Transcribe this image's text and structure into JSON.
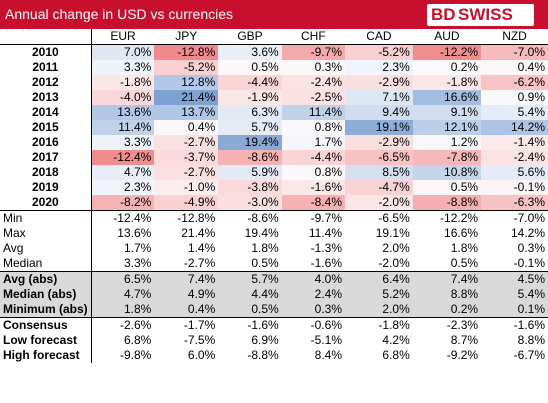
{
  "title": "Annual change in USD vs currencies",
  "logo": {
    "bd": "BD",
    "swiss": "SWISS"
  },
  "columns": [
    "EUR",
    "JPY",
    "GBP",
    "CHF",
    "CAD",
    "AUD",
    "NZD"
  ],
  "years": [
    {
      "year": "2010",
      "values": [
        "7.0%",
        "-12.8%",
        "3.6%",
        "-9.7%",
        "-5.2%",
        "-12.2%",
        "-7.0%"
      ],
      "colors": [
        "#dfe7f3",
        "#f08a8c",
        "#e9eef7",
        "#f4a9aa",
        "#f9cfd0",
        "#f08d8f",
        "#f6bcbd"
      ]
    },
    {
      "year": "2011",
      "values": [
        "3.3%",
        "-5.2%",
        "0.5%",
        "0.3%",
        "2.3%",
        "0.2%",
        "0.4%"
      ],
      "colors": [
        "#eef2f9",
        "#f9cfd0",
        "#fbf6f8",
        "#fcf8fa",
        "#f1f4fa",
        "#fcf9fb",
        "#fbf7f9"
      ]
    },
    {
      "year": "2012",
      "values": [
        "-1.8%",
        "12.8%",
        "-4.4%",
        "-2.4%",
        "-2.9%",
        "-1.8%",
        "-6.2%"
      ],
      "colors": [
        "#fbe7e8",
        "#b3c8e6",
        "#fad5d6",
        "#fbe2e3",
        "#fbdfe0",
        "#fbe7e8",
        "#f8c4c5"
      ]
    },
    {
      "year": "2013",
      "values": [
        "-4.0%",
        "21.4%",
        "-1.9%",
        "-2.5%",
        "7.1%",
        "16.6%",
        "0.9%"
      ],
      "colors": [
        "#fad8d9",
        "#7ea1d1",
        "#fbe6e7",
        "#fbe1e2",
        "#dde6f3",
        "#a3bde0",
        "#f9f8fb"
      ]
    },
    {
      "year": "2014",
      "values": [
        "13.6%",
        "13.7%",
        "6.3%",
        "11.4%",
        "9.4%",
        "9.1%",
        "5.4%"
      ],
      "colors": [
        "#b1c7e5",
        "#b0c6e5",
        "#e2e9f5",
        "#c0d1ea",
        "#d0dcef",
        "#d2ddef",
        "#e6ecf6"
      ]
    },
    {
      "year": "2015",
      "values": [
        "11.4%",
        "0.4%",
        "5.7%",
        "0.8%",
        "19.1%",
        "12.1%",
        "14.2%"
      ],
      "colors": [
        "#c0d1ea",
        "#fbf7f9",
        "#e4ebf5",
        "#faf8fb",
        "#8dacd6",
        "#bccfe8",
        "#adc4e4"
      ]
    },
    {
      "year": "2016",
      "values": [
        "3.3%",
        "-2.7%",
        "19.4%",
        "1.7%",
        "-2.9%",
        "1.2%",
        "-1.4%"
      ],
      "colors": [
        "#eef2f9",
        "#fbe0e1",
        "#8aa9d5",
        "#f5f6fb",
        "#fbdfe0",
        "#f8f8fb",
        "#fce9ea"
      ]
    },
    {
      "year": "2017",
      "values": [
        "-12.4%",
        "-3.7%",
        "-8.6%",
        "-4.4%",
        "-6.5%",
        "-7.8%",
        "-2.4%"
      ],
      "colors": [
        "#f08c8e",
        "#fadadb",
        "#f6b1b2",
        "#fad5d6",
        "#f8c2c3",
        "#f7b8b9",
        "#fbe2e3"
      ]
    },
    {
      "year": "2018",
      "values": [
        "4.7%",
        "-2.7%",
        "5.9%",
        "0.8%",
        "8.5%",
        "10.8%",
        "5.6%"
      ],
      "colors": [
        "#e8eef7",
        "#fbe0e1",
        "#e3eaf5",
        "#faf8fb",
        "#d5dff0",
        "#c5d4eb",
        "#e5ebf6"
      ]
    },
    {
      "year": "2019",
      "values": [
        "2.3%",
        "-1.0%",
        "-3.8%",
        "-1.6%",
        "-4.7%",
        "0.5%",
        "-0.1%"
      ],
      "colors": [
        "#f1f4fa",
        "#fbeced",
        "#fad9da",
        "#fbe8e9",
        "#f9d3d4",
        "#fbf6f8",
        "#fcf3f4"
      ]
    },
    {
      "year": "2020",
      "values": [
        "-8.2%",
        "-4.9%",
        "-3.0%",
        "-8.4%",
        "-2.0%",
        "-8.8%",
        "-6.3%"
      ],
      "colors": [
        "#f6b3b4",
        "#f9d1d2",
        "#fbdedf",
        "#f6b2b3",
        "#fbe5e6",
        "#f6afb0",
        "#f8c3c4"
      ]
    }
  ],
  "stats": [
    {
      "label": "Min",
      "values": [
        "-12.4%",
        "-12.8%",
        "-8.6%",
        "-9.7%",
        "-6.5%",
        "-12.2%",
        "-7.0%"
      ]
    },
    {
      "label": "Max",
      "values": [
        "13.6%",
        "21.4%",
        "19.4%",
        "11.4%",
        "19.1%",
        "16.6%",
        "14.2%"
      ]
    },
    {
      "label": "Avg",
      "values": [
        "1.7%",
        "1.4%",
        "1.8%",
        "-1.3%",
        "2.0%",
        "1.8%",
        "0.3%"
      ]
    },
    {
      "label": "Median",
      "values": [
        "3.3%",
        "-2.7%",
        "0.5%",
        "-1.6%",
        "-2.0%",
        "0.5%",
        "-0.1%"
      ]
    }
  ],
  "abs": [
    {
      "label": "Avg (abs)",
      "values": [
        "6.5%",
        "7.4%",
        "5.7%",
        "4.0%",
        "6.4%",
        "7.4%",
        "4.5%"
      ]
    },
    {
      "label": "Median (abs)",
      "values": [
        "4.7%",
        "4.9%",
        "4.4%",
        "2.4%",
        "5.2%",
        "8.8%",
        "5.4%"
      ]
    },
    {
      "label": "Minimum (abs)",
      "values": [
        "1.8%",
        "0.4%",
        "0.5%",
        "0.3%",
        "2.0%",
        "0.2%",
        "0.1%"
      ]
    }
  ],
  "forecasts": [
    {
      "label": "Consensus",
      "values": [
        "-2.6%",
        "-1.7%",
        "-1.6%",
        "-0.6%",
        "-1.8%",
        "-2.3%",
        "-1.6%"
      ]
    },
    {
      "label": "Low forecast",
      "values": [
        "6.8%",
        "-7.5%",
        "6.9%",
        "-5.1%",
        "4.2%",
        "8.7%",
        "8.8%"
      ]
    },
    {
      "label": "High forecast",
      "values": [
        "-9.8%",
        "6.0%",
        "-8.8%",
        "8.4%",
        "6.8%",
        "-9.2%",
        "-6.7%"
      ]
    }
  ]
}
